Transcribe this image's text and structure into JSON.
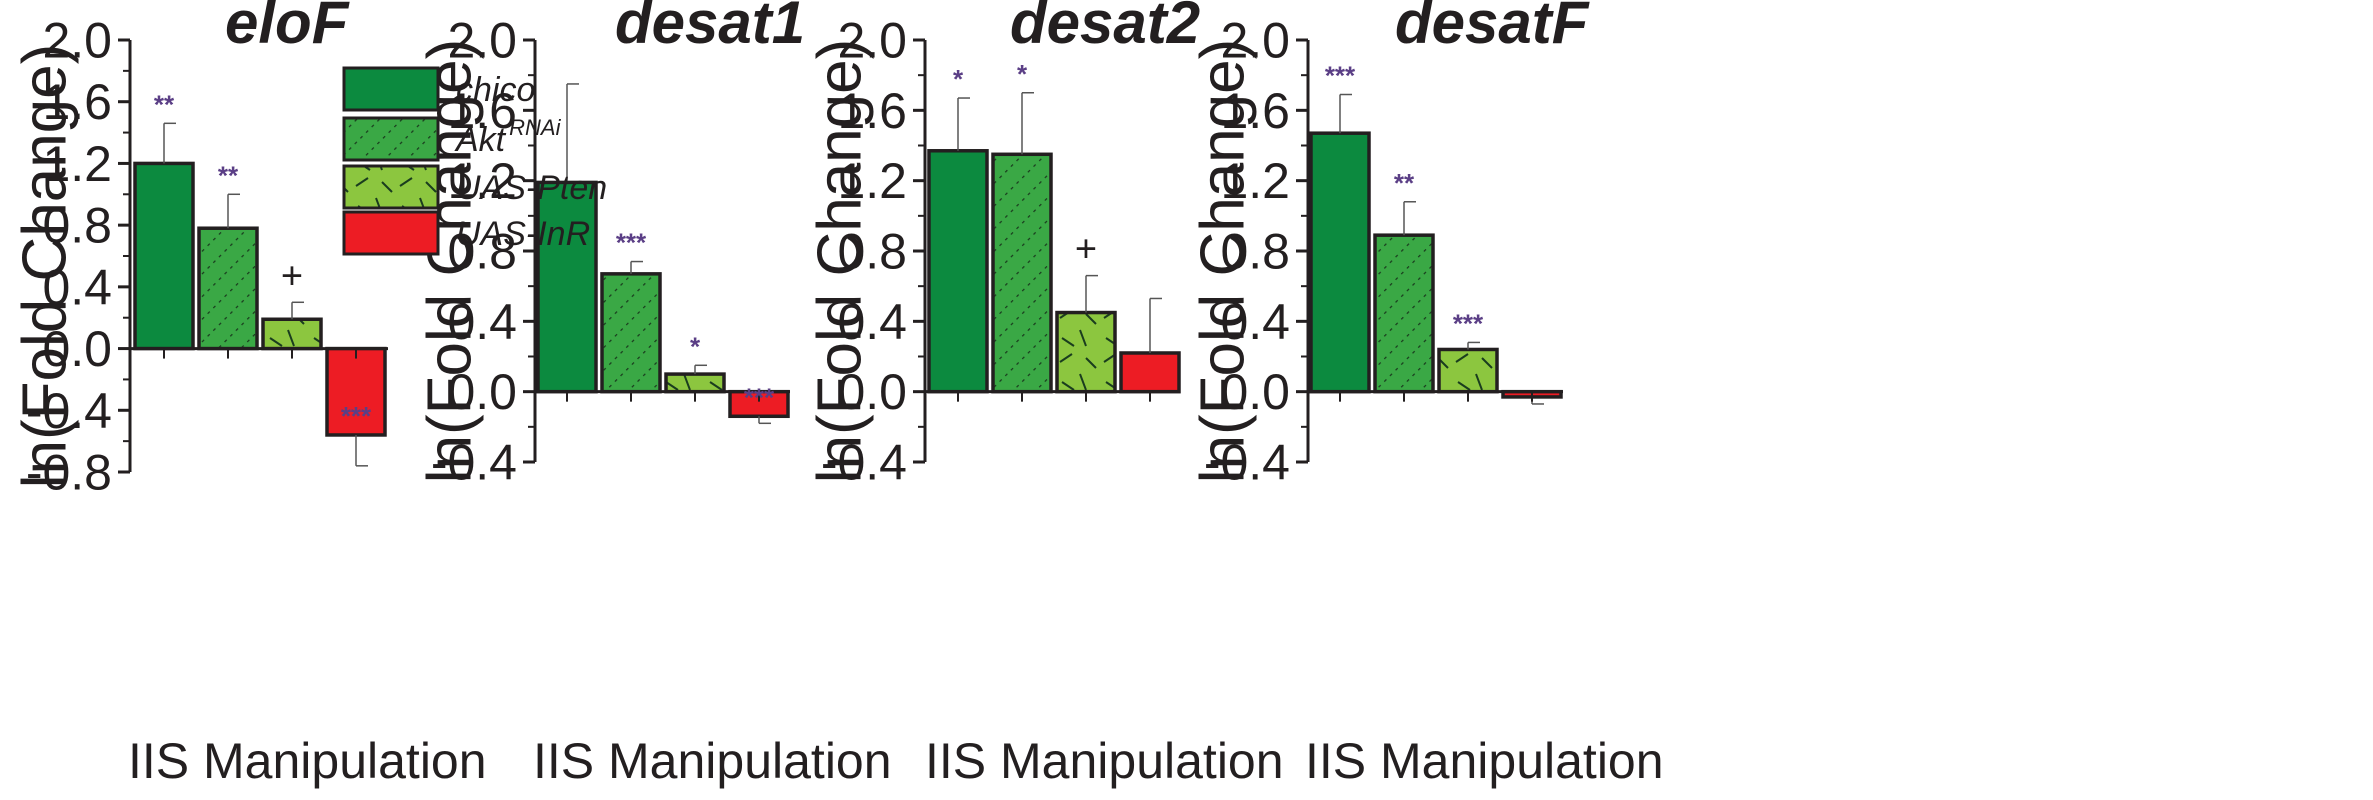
{
  "figure": {
    "legend": {
      "entries": [
        {
          "series": "chico",
          "name": "chico"
        },
        {
          "series": "akt",
          "name": "Akt",
          "superscript": "RNAi"
        },
        {
          "series": "pten",
          "name": "UAS-Pten"
        },
        {
          "series": "inr",
          "name": "UAS-InR"
        }
      ]
    }
  },
  "chart_data": [
    {
      "type": "bar",
      "title": "eloF",
      "xlabel": "IIS Manipulation",
      "ylabel": "ln(Fold Change)",
      "ylim": [
        -0.8,
        2.0
      ],
      "yticks": [
        "-0.8",
        "-0.4",
        "0.0",
        "0.4",
        "0.8",
        "1.2",
        "1.6",
        "2.0"
      ],
      "categories": [
        "chico",
        "Akt RNAi",
        "UAS-Pten",
        "UAS-InR"
      ],
      "values": [
        1.2,
        0.78,
        0.19,
        -0.56
      ],
      "errors": [
        0.26,
        0.22,
        0.11,
        0.2
      ],
      "significance": [
        "**",
        "**",
        "+",
        "***"
      ]
    },
    {
      "type": "bar",
      "title": "desat1",
      "xlabel": "IIS Manipulation",
      "ylabel": "ln(Fold Change)",
      "ylim": [
        -0.4,
        2.0
      ],
      "yticks": [
        "-0.4",
        "0.0",
        "0.4",
        "0.8",
        "1.2",
        "1.6",
        "2.0"
      ],
      "categories": [
        "chico",
        "Akt RNAi",
        "UAS-Pten",
        "UAS-InR"
      ],
      "values": [
        1.19,
        0.67,
        0.1,
        -0.14
      ],
      "errors": [
        0.56,
        0.07,
        0.05,
        0.04
      ],
      "significance": [
        "",
        "***",
        "*",
        "***"
      ]
    },
    {
      "type": "bar",
      "title": "desat2",
      "xlabel": "IIS Manipulation",
      "ylabel": "ln(Fold Change)",
      "ylim": [
        -0.4,
        2.0
      ],
      "yticks": [
        "-0.4",
        "0.0",
        "0.4",
        "0.8",
        "1.2",
        "1.6",
        "2.0"
      ],
      "categories": [
        "chico",
        "Akt RNAi",
        "UAS-Pten",
        "UAS-InR"
      ],
      "values": [
        1.37,
        1.35,
        0.45,
        0.22
      ],
      "errors": [
        0.3,
        0.35,
        0.21,
        0.31
      ],
      "significance": [
        "*",
        "*",
        "+",
        ""
      ]
    },
    {
      "type": "bar",
      "title": "desatF",
      "xlabel": "IIS Manipulation",
      "ylabel": "ln(Fold Change)",
      "ylim": [
        -0.4,
        2.0
      ],
      "yticks": [
        "-0.4",
        "0.0",
        "0.4",
        "0.8",
        "1.2",
        "1.6",
        "2.0"
      ],
      "categories": [
        "chico",
        "Akt RNAi",
        "UAS-Pten",
        "UAS-InR"
      ],
      "values": [
        1.47,
        0.89,
        0.24,
        -0.03
      ],
      "errors": [
        0.22,
        0.19,
        0.04,
        0.04
      ],
      "significance": [
        "***",
        "**",
        "***",
        ""
      ]
    }
  ],
  "colors": {
    "chico": "#0c8a3f",
    "akt": "#3aa845",
    "pten": "#8cc63f",
    "inr": "#ed1c24",
    "outline": "#231f20",
    "significance": "#5b3f86"
  }
}
